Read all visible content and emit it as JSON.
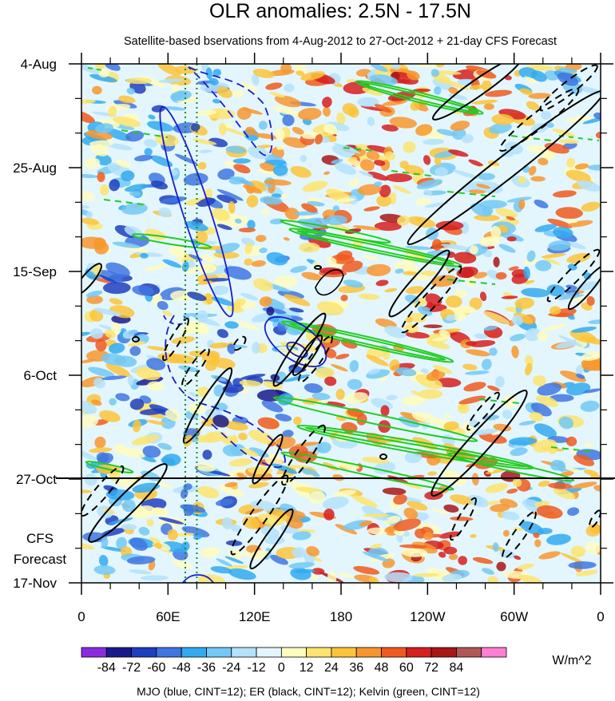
{
  "chart_data": {
    "type": "heatmap",
    "title": "OLR anomalies: 2.5N - 17.5N",
    "subtitle": "Satellite-based bservations from 4-Aug-2012 to 27-Oct-2012 + 21-day CFS Forecast",
    "x_axis": {
      "ticks": [
        "0",
        "60E",
        "120E",
        "180",
        "120W",
        "60W",
        "0"
      ],
      "range_deg_east": [
        0,
        360
      ]
    },
    "y_axis": {
      "ticks": [
        "4-Aug",
        "25-Aug",
        "15-Sep",
        "6-Oct",
        "27-Oct",
        "17-Nov"
      ],
      "range_days": [
        0,
        105
      ],
      "observation_end_label": "27-Oct",
      "forecast_label_lines": [
        "CFS",
        "Forecast"
      ]
    },
    "colorbar": {
      "levels": [
        "-84",
        "-72",
        "-60",
        "-48",
        "-36",
        "-24",
        "-12",
        "0",
        "12",
        "24",
        "36",
        "48",
        "60",
        "72",
        "84"
      ],
      "colors": [
        "#8a2be2",
        "#1a1a8c",
        "#1e3fbf",
        "#3f76e0",
        "#33aaf0",
        "#73c8f5",
        "#b4e2fb",
        "#e3f6fd",
        "#fffcc0",
        "#fde46e",
        "#fcc43a",
        "#f8962e",
        "#ef5a1e",
        "#d61f1f",
        "#a81616",
        "#b05858",
        "#ff7fd2"
      ],
      "units": "W/m^2"
    },
    "contours": {
      "footer": "MJO (blue, CINT=12); ER (black, CINT=12); Kelvin (green, CINT=12)",
      "mjo_color": "#1b1bcc",
      "er_color": "#000000",
      "kelvin_color": "#22cc22",
      "dotted_meridians_deg_east": [
        72,
        80
      ],
      "dotted_line_color": "#1a8a2a"
    }
  }
}
